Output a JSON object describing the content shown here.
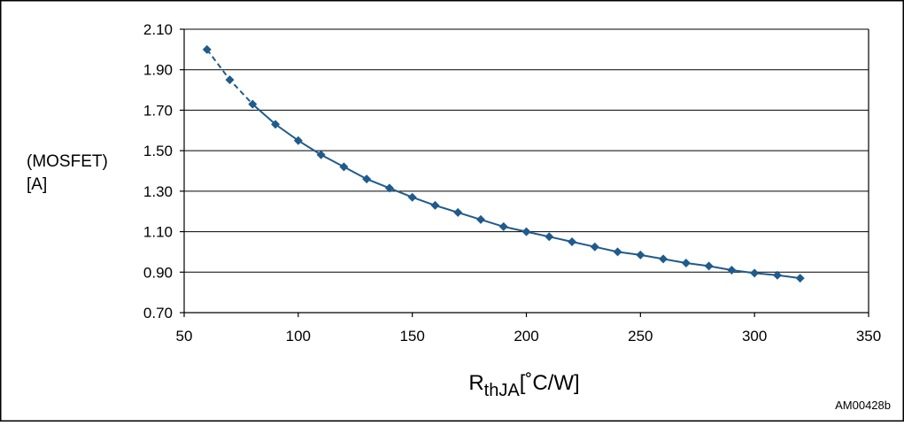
{
  "chart_data": {
    "type": "line",
    "title": "",
    "xlabel": {
      "main": "R",
      "sub": "thJA",
      "unit": "[˚C/W]"
    },
    "ylabel": {
      "sub": "(MOSFET)",
      "unit": "[A]"
    },
    "xlim": [
      50,
      350
    ],
    "ylim": [
      0.7,
      2.1
    ],
    "x_ticks": [
      50,
      100,
      150,
      200,
      250,
      300,
      350
    ],
    "y_ticks": [
      0.7,
      0.9,
      1.1,
      1.3,
      1.5,
      1.7,
      1.9,
      2.1
    ],
    "y_tick_labels": [
      "0.70",
      "0.90",
      "1.10",
      "1.30",
      "1.50",
      "1.70",
      "1.90",
      "2.10"
    ],
    "grid": {
      "horizontal": true,
      "vertical": false
    },
    "legend": "none",
    "series": [
      {
        "color": "#1f5b8c",
        "marker": "diamond",
        "dashed_until_x": 80,
        "x": [
          60,
          70,
          80,
          90,
          100,
          110,
          120,
          130,
          140,
          150,
          160,
          170,
          180,
          190,
          200,
          210,
          220,
          230,
          240,
          250,
          260,
          270,
          280,
          290,
          300,
          310,
          320
        ],
        "y": [
          2.0,
          1.85,
          1.73,
          1.63,
          1.55,
          1.48,
          1.42,
          1.36,
          1.315,
          1.27,
          1.23,
          1.195,
          1.16,
          1.125,
          1.1,
          1.075,
          1.05,
          1.025,
          1.0,
          0.985,
          0.965,
          0.945,
          0.93,
          0.91,
          0.895,
          0.885,
          0.87
        ]
      }
    ]
  },
  "figure_id": "AM00428b"
}
